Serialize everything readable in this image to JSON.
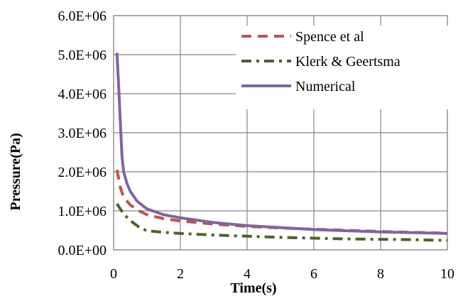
{
  "chart_data": {
    "type": "line",
    "xlabel": "Time(s)",
    "ylabel": "Pressure(Pa)",
    "xlim": [
      0,
      10
    ],
    "ylim": [
      0,
      6000000
    ],
    "x_ticks": [
      "0",
      "2",
      "4",
      "6",
      "8",
      "10"
    ],
    "y_ticks": [
      "0.0E+00",
      "1.0E+06",
      "2.0E+06",
      "3.0E+06",
      "4.0E+06",
      "5.0E+06",
      "6.0E+06"
    ],
    "grid": true,
    "legend_position": "top-right",
    "series": [
      {
        "name": "Spence et al",
        "color": "#C0504D",
        "dash": "dashed",
        "x": [
          0.1,
          0.2,
          0.3,
          0.5,
          0.8,
          1.0,
          1.5,
          2,
          3,
          4,
          5,
          6,
          7,
          8,
          9,
          10
        ],
        "y": [
          2050000,
          1600000,
          1350000,
          1150000,
          980000,
          900000,
          800000,
          740000,
          660000,
          600000,
          560000,
          530000,
          500000,
          470000,
          450000,
          430000
        ]
      },
      {
        "name": "Klerk & Geertsma",
        "color": "#4F6228",
        "dash": "dashdot",
        "x": [
          0.1,
          0.2,
          0.3,
          0.5,
          0.8,
          1.0,
          1.5,
          2,
          3,
          4,
          5,
          6,
          7,
          8,
          9,
          10
        ],
        "y": [
          1180000,
          1050000,
          920000,
          750000,
          560000,
          490000,
          450000,
          420000,
          380000,
          350000,
          320000,
          300000,
          280000,
          270000,
          260000,
          240000
        ]
      },
      {
        "name": "Numerical",
        "color": "#8064A2",
        "dash": "solid",
        "x": [
          0.1,
          0.15,
          0.2,
          0.25,
          0.3,
          0.4,
          0.5,
          0.7,
          1.0,
          1.5,
          2,
          3,
          4,
          5,
          6,
          7,
          8,
          9,
          10
        ],
        "y": [
          5050000,
          4200000,
          3300000,
          2400000,
          2000000,
          1700000,
          1500000,
          1250000,
          1050000,
          900000,
          820000,
          700000,
          620000,
          570000,
          520000,
          490000,
          460000,
          440000,
          420000
        ]
      }
    ]
  }
}
